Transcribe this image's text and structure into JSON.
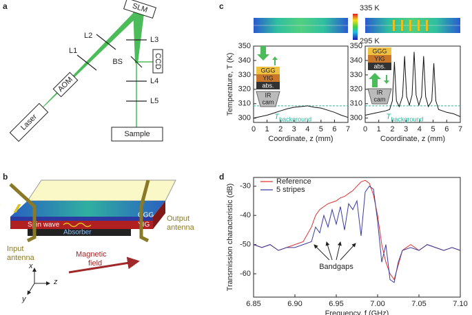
{
  "panel_labels": [
    "a",
    "b",
    "c",
    "d"
  ],
  "diagram_a": {
    "slm": "SLM",
    "l1": "L1",
    "l2": "L2",
    "l3": "L3",
    "l4": "L4",
    "l5": "L5",
    "bs": "BS",
    "ccd": "CCD",
    "aom": "AOM",
    "laser": "Laser",
    "sample": "Sample"
  },
  "diagram_b": {
    "ggg": "GGG",
    "yig": "YIG",
    "spin_wave": "Spin wave",
    "absorber": "Absorber",
    "output_antenna": [
      "Output",
      "antenna"
    ],
    "input_antenna": [
      "Input",
      "antenna"
    ],
    "magnetic_field": [
      "Magnetic",
      "field"
    ],
    "axes": {
      "x": "x",
      "y": "y",
      "z": "z"
    }
  },
  "panel_c": {
    "colorbar": {
      "max": "335 K",
      "min": "295 K"
    },
    "inset": {
      "layers": [
        "GGG",
        "YIG",
        "abs."
      ],
      "camera": [
        "IR",
        "cam"
      ]
    }
  },
  "chart_data": [
    {
      "type": "line",
      "xlabel": "Coordinate, z (mm)",
      "ylabel": "Temperature, T (K)",
      "x": [
        0,
        0.5,
        1,
        1.5,
        2,
        2.5,
        3,
        3.5,
        4,
        4.5,
        5,
        5.5,
        6,
        6.5,
        7
      ],
      "series": [
        {
          "color": "#111111",
          "values": [
            300,
            301,
            302,
            303.5,
            305,
            306.5,
            307.5,
            308,
            308.5,
            307.5,
            307,
            305.5,
            304,
            302,
            300.5
          ]
        }
      ],
      "xlim": [
        0,
        7
      ],
      "ylim": [
        297,
        350
      ],
      "xticks": [
        0,
        1,
        2,
        3,
        4,
        5,
        6,
        7
      ],
      "yticks": [
        300,
        310,
        320,
        330,
        340,
        350
      ],
      "reference_line": {
        "value": 308.5,
        "color": "#2bb39a"
      },
      "annotation": [
        "T",
        "background"
      ]
    },
    {
      "type": "line",
      "xlabel": "Coordinate, z (mm)",
      "x": [
        0,
        0.5,
        1,
        1.5,
        1.8,
        2.0,
        2.15,
        2.3,
        2.5,
        2.75,
        2.9,
        3.05,
        3.25,
        3.45,
        3.6,
        3.75,
        3.95,
        4.15,
        4.3,
        4.45,
        4.65,
        4.9,
        5.05,
        5.2,
        5.4,
        6,
        6.5,
        7
      ],
      "series": [
        {
          "color": "#111111",
          "values": [
            302,
            303,
            304,
            305,
            306,
            312,
            339,
            312,
            308,
            315,
            343,
            315,
            309,
            316,
            346,
            316,
            309,
            315,
            343,
            315,
            308,
            312,
            338,
            312,
            306,
            304,
            303,
            301
          ]
        }
      ],
      "xlim": [
        0,
        7
      ],
      "ylim": [
        297,
        350
      ],
      "xticks": [
        0,
        1,
        2,
        3,
        4,
        5,
        6,
        7
      ],
      "yticks": [
        300,
        310,
        320,
        330,
        340,
        350
      ],
      "reference_line": {
        "value": 308.5,
        "color": "#2bb39a"
      },
      "annotation": [
        "T",
        "background"
      ]
    },
    {
      "type": "line",
      "xlabel": "Frequency, f (GHz)",
      "ylabel": "Transmission characteristic (dB)",
      "x": [
        6.85,
        6.86,
        6.87,
        6.88,
        6.89,
        6.9,
        6.91,
        6.92,
        6.925,
        6.93,
        6.935,
        6.94,
        6.945,
        6.95,
        6.955,
        6.96,
        6.965,
        6.97,
        6.975,
        6.98,
        6.985,
        6.99,
        6.995,
        7.0,
        7.005,
        7.01,
        7.015,
        7.02,
        7.025,
        7.03,
        7.04,
        7.05,
        7.06,
        7.07,
        7.08,
        7.09,
        7.1
      ],
      "series": [
        {
          "name": "Reference",
          "color": "#e03030",
          "values": [
            -50,
            -51,
            -50,
            -52,
            -51,
            -50,
            -49,
            -44,
            -40,
            -38,
            -37,
            -36,
            -35.5,
            -35,
            -34,
            -33.5,
            -32.5,
            -31.5,
            -30,
            -28.5,
            -28,
            -29,
            -33,
            -40,
            -50,
            -56,
            -60,
            -62,
            -57,
            -52,
            -50,
            -52,
            -50,
            -51,
            -52,
            -51,
            -52
          ]
        },
        {
          "name": "5 stripes",
          "color": "#3a3aa0",
          "values": [
            -50,
            -51,
            -50,
            -52,
            -51,
            -51,
            -50,
            -49,
            -44,
            -46,
            -40,
            -44,
            -38,
            -43,
            -37,
            -45,
            -36,
            -38,
            -35,
            -47,
            -32,
            -30,
            -31,
            -42,
            -56,
            -50,
            -62,
            -63,
            -56,
            -52,
            -51,
            -52,
            -50,
            -51,
            -52,
            -51,
            -52
          ]
        }
      ],
      "xlim": [
        6.85,
        7.1
      ],
      "ylim": [
        -68,
        -27
      ],
      "xticks": [
        6.85,
        {
          "value": 6.9,
          "label": "6.90"
        },
        6.95,
        {
          "value": 7,
          "label": "7.00"
        },
        7.05,
        {
          "value": 7.1,
          "label": "7.10"
        }
      ],
      "yticks": [
        -60,
        -50,
        -40,
        -30
      ],
      "legend": "upper left",
      "annotation": "Bandgaps"
    }
  ]
}
